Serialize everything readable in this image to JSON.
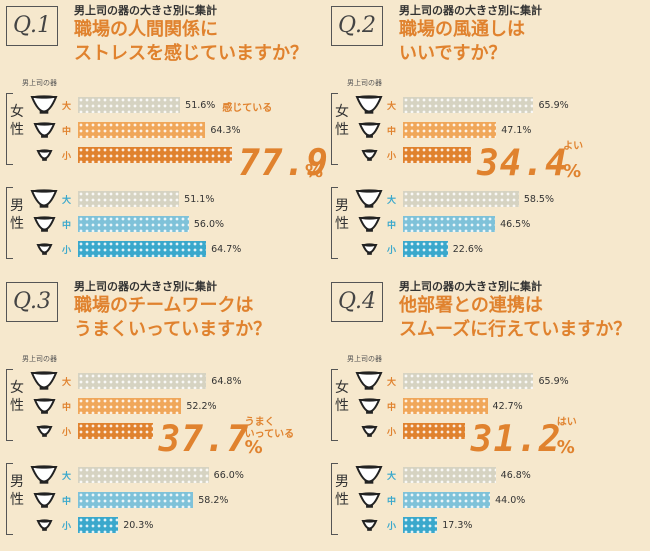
{
  "colors": {
    "background": "#f6e8cd",
    "accent": "#e0822e",
    "female_large": "#d6d3c2",
    "female_medium": "#f0a75a",
    "female_small": "#e0822e",
    "male_large": "#d6d3c2",
    "male_medium": "#7fc2d9",
    "male_small": "#3aa8cc",
    "label_orange": "#e0822e",
    "label_blue": "#3aa8cc"
  },
  "panels": [
    {
      "q": "Q.1",
      "subtitle": "男上司の器の大きさ別に集計",
      "title_line1": "職場の人間関係に",
      "title_line2": "ストレスを感じていますか？",
      "bowl_header": "男上司の器",
      "female_label": "女性",
      "male_label": "男性",
      "size_labels": [
        "大",
        "中",
        "小"
      ],
      "female": [
        "51.6%",
        "64.3%",
        ""
      ],
      "male": [
        "51.1%",
        "56.0%",
        "64.7%"
      ],
      "highlight_tag": "感じている",
      "highlight_value": "77.9",
      "highlight_unit": "%"
    },
    {
      "q": "Q.2",
      "subtitle": "男上司の器の大きさ別に集計",
      "title_line1": "職場の風通しは",
      "title_line2": "いいですか？",
      "bowl_header": "男上司の器",
      "female_label": "女性",
      "male_label": "男性",
      "size_labels": [
        "大",
        "中",
        "小"
      ],
      "female": [
        "65.9%",
        "47.1%",
        ""
      ],
      "male": [
        "58.5%",
        "46.5%",
        "22.6%"
      ],
      "highlight_tag": "よい",
      "highlight_value": "34.4",
      "highlight_unit": "%"
    },
    {
      "q": "Q.3",
      "subtitle": "男上司の器の大きさ別に集計",
      "title_line1": "職場のチームワークは",
      "title_line2": "うまくいっていますか？",
      "bowl_header": "男上司の器",
      "female_label": "女性",
      "male_label": "男性",
      "size_labels": [
        "大",
        "中",
        "小"
      ],
      "female": [
        "64.8%",
        "52.2%",
        ""
      ],
      "male": [
        "66.0%",
        "58.2%",
        "20.3%"
      ],
      "highlight_tag": "うまく\nいっている",
      "highlight_value": "37.7",
      "highlight_unit": "%"
    },
    {
      "q": "Q.4",
      "subtitle": "男上司の器の大きさ別に集計",
      "title_line1": "他部署との連携は",
      "title_line2": "スムーズに行えていますか？",
      "bowl_header": "男上司の器",
      "female_label": "女性",
      "male_label": "男性",
      "size_labels": [
        "大",
        "中",
        "小"
      ],
      "female": [
        "65.9%",
        "42.7%",
        ""
      ],
      "male": [
        "46.8%",
        "44.0%",
        "17.3%"
      ],
      "highlight_tag": "はい",
      "highlight_value": "31.2",
      "highlight_unit": "%"
    }
  ],
  "chart_data": [
    {
      "type": "bar",
      "categories": [
        "大",
        "中",
        "小"
      ],
      "series": [
        {
          "name": "女性",
          "values": [
            51.6,
            64.3,
            77.9
          ]
        },
        {
          "name": "男性",
          "values": [
            51.1,
            56.0,
            64.7
          ]
        }
      ],
      "title": "職場の人間関係にストレスを感じていますか？",
      "ylim": [
        0,
        100
      ]
    },
    {
      "type": "bar",
      "categories": [
        "大",
        "中",
        "小"
      ],
      "series": [
        {
          "name": "女性",
          "values": [
            65.9,
            47.1,
            34.4
          ]
        },
        {
          "name": "男性",
          "values": [
            58.5,
            46.5,
            22.6
          ]
        }
      ],
      "title": "職場の風通しはいいですか？",
      "ylim": [
        0,
        100
      ]
    },
    {
      "type": "bar",
      "categories": [
        "大",
        "中",
        "小"
      ],
      "series": [
        {
          "name": "女性",
          "values": [
            64.8,
            52.2,
            37.7
          ]
        },
        {
          "name": "男性",
          "values": [
            66.0,
            58.2,
            20.3
          ]
        }
      ],
      "title": "職場のチームワークはうまくいっていますか？",
      "ylim": [
        0,
        100
      ]
    },
    {
      "type": "bar",
      "categories": [
        "大",
        "中",
        "小"
      ],
      "series": [
        {
          "name": "女性",
          "values": [
            65.9,
            42.7,
            31.2
          ]
        },
        {
          "name": "男性",
          "values": [
            46.8,
            44.0,
            17.3
          ]
        }
      ],
      "title": "他部署との連携はスムーズに行えていますか？",
      "ylim": [
        0,
        100
      ]
    }
  ]
}
